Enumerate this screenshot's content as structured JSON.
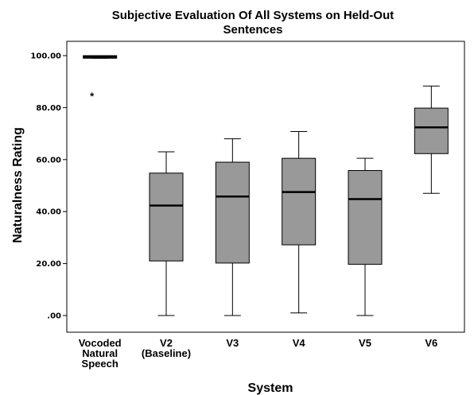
{
  "chart_data": {
    "type": "boxplot",
    "title": "Subjective Evaluation Of All Systems on Held-Out Sentences",
    "title_lines": [
      "Subjective Evaluation Of All Systems on Held-Out",
      "Sentences"
    ],
    "xlabel": "System",
    "ylabel": "Naturalness Rating",
    "ylim": [
      0,
      100
    ],
    "y_ticks": [
      {
        "value": 0,
        "label": ".00"
      },
      {
        "value": 20,
        "label": "20.00"
      },
      {
        "value": 40,
        "label": "40.00"
      },
      {
        "value": 60,
        "label": "60.00"
      },
      {
        "value": 80,
        "label": "80.00"
      },
      {
        "value": 100,
        "label": "100.00"
      }
    ],
    "box_color": "#999999",
    "grid": false,
    "categories": [
      {
        "label_lines": [
          "Vocoded",
          "Natural",
          "Speech"
        ],
        "min": 99.0,
        "q1": 99.0,
        "median": 99.5,
        "q3": 100.0,
        "max": 100.0,
        "outliers": [
          {
            "value": 84.5,
            "marker": "*"
          }
        ]
      },
      {
        "label_lines": [
          "V2",
          "(Baseline)"
        ],
        "min": 0.0,
        "q1": 21.0,
        "median": 42.3,
        "q3": 54.8,
        "max": 63.0,
        "outliers": []
      },
      {
        "label_lines": [
          "V3"
        ],
        "min": 0.0,
        "q1": 20.2,
        "median": 45.8,
        "q3": 59.0,
        "max": 68.0,
        "outliers": []
      },
      {
        "label_lines": [
          "V4"
        ],
        "min": 1.0,
        "q1": 27.2,
        "median": 47.5,
        "q3": 60.5,
        "max": 70.8,
        "outliers": []
      },
      {
        "label_lines": [
          "V5"
        ],
        "min": 0.0,
        "q1": 19.7,
        "median": 44.8,
        "q3": 55.8,
        "max": 60.5,
        "outliers": []
      },
      {
        "label_lines": [
          "V6"
        ],
        "min": 47.0,
        "q1": 62.3,
        "median": 72.4,
        "q3": 79.8,
        "max": 88.3,
        "outliers": []
      }
    ]
  }
}
